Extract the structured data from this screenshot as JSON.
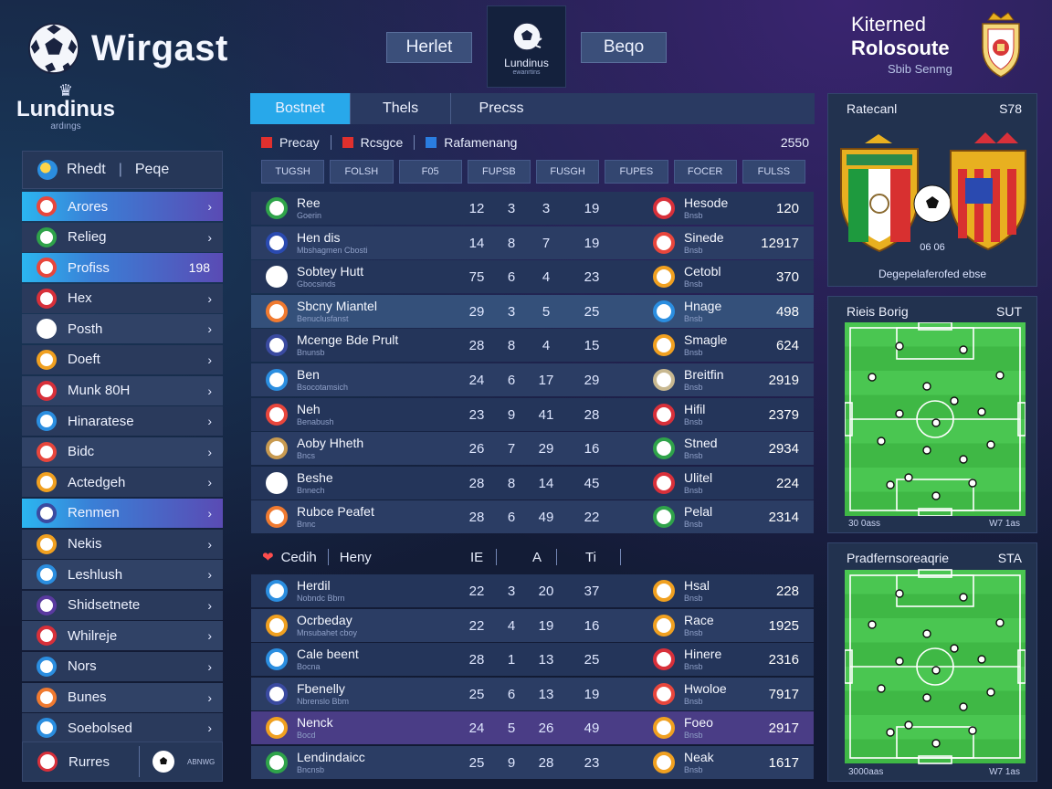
{
  "header": {
    "brand": "Wirgast",
    "sub_brand_name": "Lundinus",
    "sub_brand_tag": "ardıngs",
    "btn_left": "Herlet",
    "btn_right": "Beqo",
    "emblem_name": "Lundinus",
    "emblem_tag": "ewanrtins",
    "right_line1": "Kiterned",
    "right_line2": "Rolosoute",
    "right_line3": "Sbib Senmg"
  },
  "sidebar": {
    "head_left": "Rhedt",
    "head_right": "Peqe",
    "items": [
      {
        "label": "Arores",
        "active": true,
        "icon": "club-crest-icon",
        "color": "#e8463c",
        "count": ""
      },
      {
        "label": "Relieg",
        "active": false,
        "icon": "flag-crest-icon",
        "color": "#2fa34a",
        "count": ""
      },
      {
        "label": "Profiss",
        "active": true,
        "icon": "club-crest-icon",
        "color": "#e8463c",
        "count": "198"
      },
      {
        "label": "Hex",
        "active": false,
        "icon": "club-crest-icon",
        "color": "#d8303a",
        "count": ""
      },
      {
        "label": "Posth",
        "active": false,
        "icon": "soccer-ball-icon",
        "color": "#ffffff",
        "count": ""
      },
      {
        "label": "Doeft",
        "active": false,
        "icon": "shield-crest-icon",
        "color": "#f0a020",
        "count": ""
      },
      {
        "label": "Munk 80H",
        "active": false,
        "icon": "club-crest-icon",
        "color": "#d8303a",
        "count": ""
      },
      {
        "label": "Hinaratese",
        "active": false,
        "icon": "bird-crest-icon",
        "color": "#2b8ee0",
        "count": ""
      },
      {
        "label": "Bidc",
        "active": false,
        "icon": "club-crest-icon",
        "color": "#e8463c",
        "count": ""
      },
      {
        "label": "Actedgeh",
        "active": false,
        "icon": "shield-crest-icon",
        "color": "#f0a020",
        "count": ""
      },
      {
        "label": "Renmen",
        "active": true,
        "icon": "star-crest-icon",
        "color": "#3a4aa0",
        "count": ""
      },
      {
        "label": "Nekis",
        "active": false,
        "icon": "shield-crest-icon",
        "color": "#f0a020",
        "count": ""
      },
      {
        "label": "Leshlush",
        "active": false,
        "icon": "soccer-ball-icon",
        "color": "#2b8ee0",
        "count": ""
      },
      {
        "label": "Shidsetnete",
        "active": false,
        "icon": "star-crest-icon",
        "color": "#5a3aa0",
        "count": ""
      },
      {
        "label": "Whilreje",
        "active": false,
        "icon": "flag-crest-icon",
        "color": "#d8303a",
        "count": ""
      },
      {
        "label": "Nors",
        "active": false,
        "icon": "bird-crest-icon",
        "color": "#2b8ee0",
        "count": ""
      },
      {
        "label": "Bunes",
        "active": false,
        "icon": "club-crest-icon",
        "color": "#f07a30",
        "count": ""
      },
      {
        "label": "Soebolsed",
        "active": false,
        "icon": "bird-crest-icon",
        "color": "#2b8ee0",
        "count": ""
      }
    ],
    "foot_label": "Rurres",
    "foot_tag": "ABNWG"
  },
  "tabs": [
    "Bostnet",
    "Thels",
    "Precss"
  ],
  "legend": {
    "items": [
      {
        "label": "Precay",
        "color": "#e0302e"
      },
      {
        "label": "Rcsgce",
        "color": "#e0302e"
      },
      {
        "label": "Rafamenang",
        "color": "#2a7de0"
      }
    ],
    "right_value": "2550"
  },
  "columns": [
    "TUGSH",
    "FOLSH",
    "F05",
    "FUPSB",
    "FUSGH",
    "FUPES",
    "FOCER",
    "FULSS"
  ],
  "table_top": [
    {
      "name": "Ree",
      "sub": "Goerin",
      "icon_color": "#2fa34a",
      "c1": "12",
      "c2": "3",
      "c3": "3",
      "c4": "19",
      "name2": "Hesode",
      "sub2": "Bnsb",
      "icon2_color": "#d8303a",
      "val": "120",
      "style": "normal"
    },
    {
      "name": "Hen dis",
      "sub": "Mbshagmen Cbosti",
      "icon_color": "#2a4ab0",
      "c1": "14",
      "c2": "8",
      "c3": "7",
      "c4": "19",
      "name2": "Sinede",
      "sub2": "Bnsb",
      "icon2_color": "#e8463c",
      "val": "12917",
      "style": "normal"
    },
    {
      "name": "Sobtey Hutt",
      "sub": "Gbocsinds",
      "icon_color": "#ffffff",
      "c1": "75",
      "c2": "6",
      "c3": "4",
      "c4": "23",
      "name2": "Cetobl",
      "sub2": "Bnsb",
      "icon2_color": "#f0a020",
      "val": "370",
      "style": "normal"
    },
    {
      "name": "Sbcny Miantel",
      "sub": "Benuclusfanst",
      "icon_color": "#f07a30",
      "c1": "29",
      "c2": "3",
      "c3": "5",
      "c4": "25",
      "name2": "Hnage",
      "sub2": "Bnsb",
      "icon2_color": "#2b8ee0",
      "val": "498",
      "style": "hl"
    },
    {
      "name": "Mcenge Bde Prult",
      "sub": "Bnunsb",
      "icon_color": "#3a4aa0",
      "c1": "28",
      "c2": "8",
      "c3": "4",
      "c4": "15",
      "name2": "Smagle",
      "sub2": "Bnsb",
      "icon2_color": "#f0a020",
      "val": "624",
      "style": "normal"
    },
    {
      "name": "Ben",
      "sub": "Bsocotamsich",
      "icon_color": "#2b8ee0",
      "c1": "24",
      "c2": "6",
      "c3": "17",
      "c4": "29",
      "name2": "Breitfin",
      "sub2": "Bnsb",
      "icon2_color": "#c8b890",
      "val": "2919",
      "style": "normal"
    },
    {
      "name": "Neh",
      "sub": "Benabush",
      "icon_color": "#e8463c",
      "c1": "23",
      "c2": "9",
      "c3": "41",
      "c4": "28",
      "name2": "Hifil",
      "sub2": "Bnsb",
      "icon2_color": "#d8303a",
      "val": "2379",
      "style": "normal"
    },
    {
      "name": "Aoby Hheth",
      "sub": "Bncs",
      "icon_color": "#c89a50",
      "c1": "26",
      "c2": "7",
      "c3": "29",
      "c4": "16",
      "name2": "Stned",
      "sub2": "Bnsb",
      "icon2_color": "#2fa34a",
      "val": "2934",
      "style": "normal"
    },
    {
      "name": "Beshe",
      "sub": "Bnnech",
      "icon_color": "#ffffff",
      "c1": "28",
      "c2": "8",
      "c3": "14",
      "c4": "45",
      "name2": "Ulitel",
      "sub2": "Bnsb",
      "icon2_color": "#d8303a",
      "val": "224",
      "style": "normal"
    },
    {
      "name": "Rubce Peafet",
      "sub": "Bnnc",
      "icon_color": "#f07a30",
      "c1": "28",
      "c2": "6",
      "c3": "49",
      "c4": "22",
      "name2": "Pelal",
      "sub2": "Bnsb",
      "icon2_color": "#2fa34a",
      "val": "2314",
      "style": "normal"
    }
  ],
  "midbar": {
    "left": "Cedih",
    "mid": "Heny",
    "h1": "IE",
    "h2": "A",
    "h3": "Ti"
  },
  "table_bottom": [
    {
      "name": "Herdil",
      "sub": "Nobndc Bbrn",
      "icon_color": "#2b8ee0",
      "c1": "22",
      "c2": "3",
      "c3": "20",
      "c4": "37",
      "name2": "Hsal",
      "sub2": "Bnsb",
      "icon2_color": "#f0a020",
      "val": "228",
      "style": "normal"
    },
    {
      "name": "Ocrbeday",
      "sub": "Mnsubahet cboy",
      "icon_color": "#f0a020",
      "c1": "22",
      "c2": "4",
      "c3": "19",
      "c4": "16",
      "name2": "Race",
      "sub2": "Bnsb",
      "icon2_color": "#f0a020",
      "val": "1925",
      "style": "normal"
    },
    {
      "name": "Cale beent",
      "sub": "Bocna",
      "icon_color": "#2b8ee0",
      "c1": "28",
      "c2": "1",
      "c3": "13",
      "c4": "25",
      "name2": "Hinere",
      "sub2": "Bnsb",
      "icon2_color": "#d8303a",
      "val": "2316",
      "style": "normal"
    },
    {
      "name": "Fbenelly",
      "sub": "Nbrenslo Bbm",
      "icon_color": "#3a4aa0",
      "c1": "25",
      "c2": "6",
      "c3": "13",
      "c4": "19",
      "name2": "Hwoloe",
      "sub2": "Bnsb",
      "icon2_color": "#e8463c",
      "val": "7917",
      "style": "normal"
    },
    {
      "name": "Nenck",
      "sub": "Bocd",
      "icon_color": "#f0a020",
      "c1": "24",
      "c2": "5",
      "c3": "26",
      "c4": "49",
      "name2": "Foeo",
      "sub2": "Bnsb",
      "icon2_color": "#f0a020",
      "val": "2917",
      "style": "purple"
    },
    {
      "name": "Lendindaicc",
      "sub": "Bncnsb",
      "icon_color": "#2fa34a",
      "c1": "25",
      "c2": "9",
      "c3": "28",
      "c4": "23",
      "name2": "Neak",
      "sub2": "Bnsb",
      "icon2_color": "#f0a020",
      "val": "1617",
      "style": "normal"
    }
  ],
  "right_panels": {
    "match": {
      "title": "Ratecanl",
      "num": "S78",
      "caption": "Degepelaferofed ebse",
      "vs": "06 06"
    },
    "pitch1": {
      "title": "Rieis Borig",
      "num": "SUT",
      "left_corner": "30 0ass",
      "right_corner": "W7 1as"
    },
    "pitch2": {
      "title": "Pradfernsoreaqrie",
      "num": "STA",
      "left_corner": "3000aas",
      "right_corner": "W7 1as"
    }
  },
  "colors": {
    "accent": "#28a8ea",
    "pitch_green": "#3fb845",
    "panel": "#22324f"
  }
}
